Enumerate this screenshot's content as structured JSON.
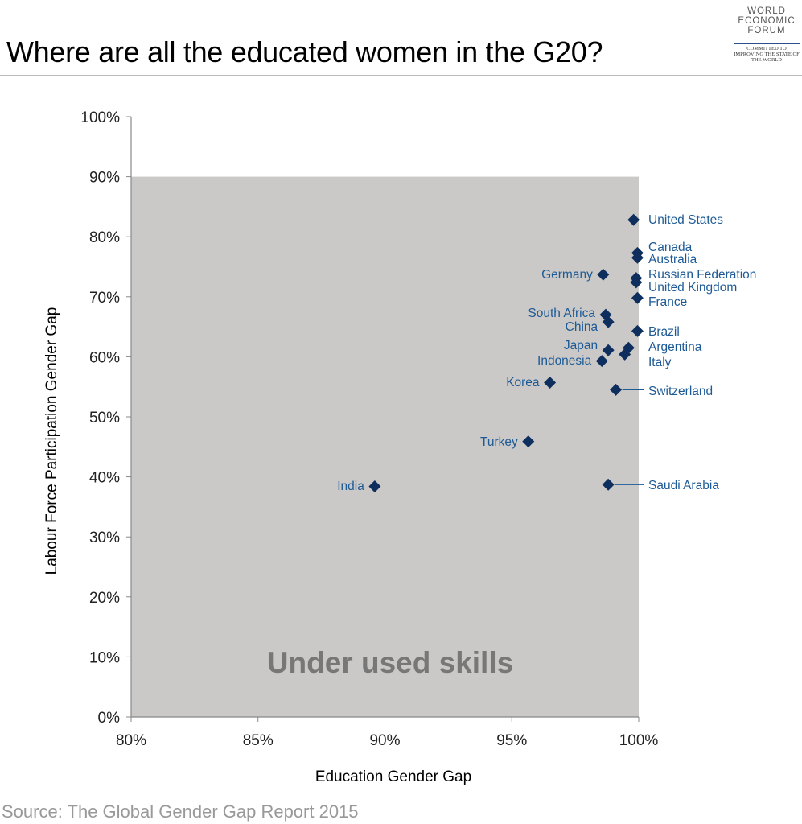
{
  "title": "Where are all the educated women in the G20?",
  "logo": {
    "name": "WORLD ECONOMIC FORUM",
    "tagline": "COMMITTED TO IMPROVING THE STATE OF THE WORLD",
    "lines": [
      "WORLD",
      "ECONOMIC",
      "FORUM"
    ]
  },
  "source": "Source: The Global Gender Gap Report 2015",
  "chart_data": {
    "type": "scatter",
    "title": "Where are all the educated women in the G20?",
    "xlabel": "Education Gender Gap",
    "ylabel": "Labour Force Participation Gender Gap",
    "xlim": [
      80,
      100
    ],
    "ylim": [
      0,
      100
    ],
    "xticks": [
      "80%",
      "85%",
      "90%",
      "95%",
      "100%"
    ],
    "yticks": [
      "0%",
      "10%",
      "20%",
      "30%",
      "40%",
      "50%",
      "60%",
      "70%",
      "80%",
      "90%",
      "100%"
    ],
    "grid": false,
    "shaded_region": {
      "label": "Under used skills",
      "x": [
        80,
        100
      ],
      "y": [
        0,
        90
      ],
      "color": "#cbc9c7"
    },
    "marker_color": "#0e2f5e",
    "label_color": "#1d5a96",
    "points": [
      {
        "name": "United States",
        "x": 99.8,
        "y": 82.8
      },
      {
        "name": "Canada",
        "x": 99.95,
        "y": 77.3
      },
      {
        "name": "Australia",
        "x": 99.95,
        "y": 76.5
      },
      {
        "name": "Russian Federation",
        "x": 99.9,
        "y": 73.1
      },
      {
        "name": "United Kingdom",
        "x": 99.9,
        "y": 72.4
      },
      {
        "name": "France",
        "x": 99.95,
        "y": 69.8
      },
      {
        "name": "Germany",
        "x": 98.6,
        "y": 73.7
      },
      {
        "name": "South Africa",
        "x": 98.7,
        "y": 67.0
      },
      {
        "name": "China",
        "x": 98.8,
        "y": 65.8
      },
      {
        "name": "Brazil",
        "x": 99.95,
        "y": 64.3
      },
      {
        "name": "Japan",
        "x": 98.8,
        "y": 61.1
      },
      {
        "name": "Argentina",
        "x": 99.6,
        "y": 61.5
      },
      {
        "name": "Italy",
        "x": 99.45,
        "y": 60.4
      },
      {
        "name": "Indonesia",
        "x": 98.55,
        "y": 59.3
      },
      {
        "name": "Korea",
        "x": 96.5,
        "y": 55.7
      },
      {
        "name": "Switzerland",
        "x": 99.1,
        "y": 54.5
      },
      {
        "name": "Turkey",
        "x": 95.65,
        "y": 45.9
      },
      {
        "name": "India",
        "x": 89.6,
        "y": 38.4
      },
      {
        "name": "Saudi Arabia",
        "x": 98.8,
        "y": 38.7
      }
    ]
  }
}
